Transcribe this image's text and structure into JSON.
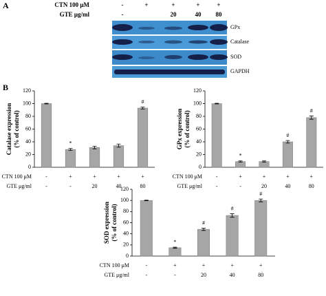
{
  "panel_a": {
    "label": "A",
    "row_labels": [
      "CTN 100 μM",
      "GTE μg/ml"
    ],
    "rows": [
      [
        "-",
        "+",
        "+",
        "+",
        "+"
      ],
      [
        "-",
        null,
        "20",
        "40",
        "80"
      ]
    ],
    "bands": [
      "GPx",
      "Catalase",
      "SOD",
      "GAPDH"
    ]
  },
  "panel_b": {
    "label": "B"
  },
  "chart_data": [
    {
      "type": "bar",
      "y_label": [
        "Catalase expression",
        "(% of control)"
      ],
      "row_labels": [
        "CTN 100 μM",
        "GTE μg/ml"
      ],
      "rows": [
        [
          "-",
          "+",
          "+",
          "+",
          "+"
        ],
        [
          "-",
          "-",
          "20",
          "40",
          "80"
        ]
      ],
      "values": [
        100,
        28,
        31,
        34,
        93
      ],
      "errors": [
        0.5,
        1.5,
        2,
        2.5,
        1.5
      ],
      "annotations": [
        null,
        "*",
        null,
        null,
        "#"
      ],
      "color": "#a6a6a6",
      "ylim": [
        0,
        120
      ],
      "yticks": [
        0,
        20,
        40,
        60,
        80,
        100,
        120
      ]
    },
    {
      "type": "bar",
      "y_label": [
        "GPx expression",
        "(% of control)"
      ],
      "row_labels": [
        "CTN 100 μM",
        "GTE μg/ml"
      ],
      "rows": [
        [
          "-",
          "+",
          "+",
          "+",
          "+"
        ],
        [
          "-",
          "-",
          "20",
          "40",
          "80"
        ]
      ],
      "values": [
        100,
        9,
        9,
        40,
        78
      ],
      "errors": [
        0.5,
        1,
        1,
        2,
        2.5
      ],
      "annotations": [
        null,
        "*",
        null,
        "#",
        "#"
      ],
      "color": "#a6a6a6",
      "ylim": [
        0,
        120
      ],
      "yticks": [
        0,
        20,
        40,
        60,
        80,
        100,
        120
      ]
    },
    {
      "type": "bar",
      "y_label": [
        "SOD expression",
        "(% of control)"
      ],
      "row_labels": [
        "CTN 100 μM",
        "GTE μg/ml"
      ],
      "rows": [
        [
          "-",
          "+",
          "+",
          "+",
          "+"
        ],
        [
          "-",
          "-",
          "20",
          "40",
          "80"
        ]
      ],
      "values": [
        100,
        15,
        48,
        73,
        100
      ],
      "errors": [
        0.5,
        1,
        2,
        3,
        2.5
      ],
      "annotations": [
        null,
        "*",
        "#",
        "#",
        "#"
      ],
      "color": "#a6a6a6",
      "ylim": [
        0,
        120
      ],
      "yticks": [
        0,
        20,
        40,
        60,
        80,
        100,
        120
      ]
    }
  ]
}
